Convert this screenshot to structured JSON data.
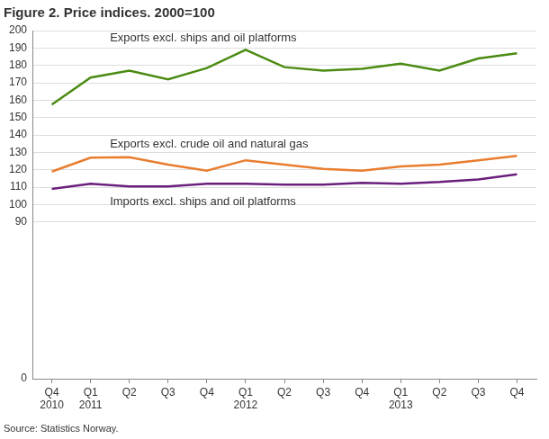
{
  "chart_data": {
    "type": "line",
    "title": "Figure 2. Price indices. 2000=100",
    "source": "Source: Statistics Norway.",
    "categories": [
      [
        "Q4",
        "2010"
      ],
      [
        "Q1",
        "2011"
      ],
      "Q2",
      "Q3",
      "Q4",
      [
        "Q1",
        "2012"
      ],
      "Q2",
      "Q3",
      "Q4",
      [
        "Q1",
        "2013"
      ],
      "Q2",
      "Q3",
      "Q4"
    ],
    "series": [
      {
        "name": "Exports excl. ships and oil platforms",
        "color": "#4b8b12",
        "values": [
          157.5,
          173,
          177,
          172,
          178.5,
          189,
          179,
          177,
          178,
          181,
          177,
          184,
          187
        ]
      },
      {
        "name": "Exports excl. crude oil and natural gas",
        "color": "#e87d2f",
        "values": [
          119,
          127,
          127.3,
          123,
          119.5,
          125.5,
          123,
          120.5,
          119.5,
          122,
          123,
          125.5,
          128
        ]
      },
      {
        "name": "Imports excl. ships and oil platforms",
        "color": "#6b1f7c",
        "values": [
          109,
          112,
          110.5,
          110.5,
          112,
          112,
          111.5,
          111.5,
          112.5,
          112,
          113,
          114.5,
          117.5
        ]
      }
    ],
    "ylim": [
      0,
      200
    ],
    "yticks": [
      0,
      90,
      100,
      110,
      120,
      130,
      140,
      150,
      160,
      170,
      180,
      190,
      200
    ],
    "grid": true
  }
}
